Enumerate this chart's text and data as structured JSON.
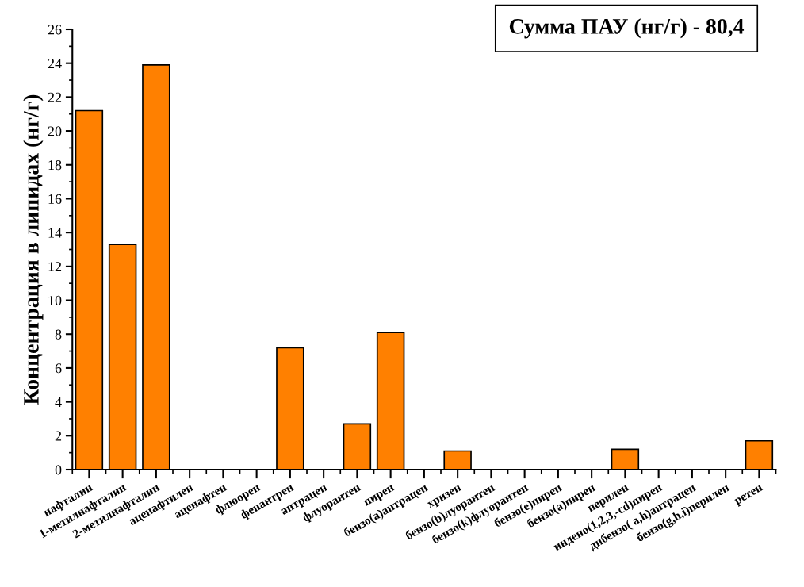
{
  "chart_data": {
    "type": "bar",
    "title": "Сумма ПАУ (нг/г) - 80,4",
    "ylabel": "Концентрация в липидах (нг/г)",
    "categories": [
      "нафталин",
      "1-метилнафталин",
      "2-метилнафталин",
      "аценафтилен",
      "аценафтен",
      "флюорен",
      "фенантрен",
      "антрацен",
      "флуорантен",
      "пирен",
      "бензо(а)антрацен",
      "хризен",
      "бензо(b)луорантен",
      "бензо(k)флуорантен",
      "бензо(е)пирен",
      "бензо(а)пирен",
      "перилен",
      "индено(1,2,3,-cd)пирен",
      "дибензо( a,h)антрацен",
      "бензо(g,h,i)перилен",
      "ретен"
    ],
    "values": [
      21.2,
      13.3,
      23.9,
      0,
      0,
      0,
      7.2,
      0,
      2.7,
      8.1,
      0,
      1.1,
      0,
      0,
      0,
      0,
      1.2,
      0,
      0,
      0,
      1.7
    ],
    "color": "#ff8000",
    "ylim": [
      0,
      26
    ],
    "yticks": [
      0,
      2,
      4,
      6,
      8,
      10,
      12,
      14,
      16,
      18,
      20,
      22,
      24,
      26
    ],
    "grid": false,
    "legend": false
  }
}
